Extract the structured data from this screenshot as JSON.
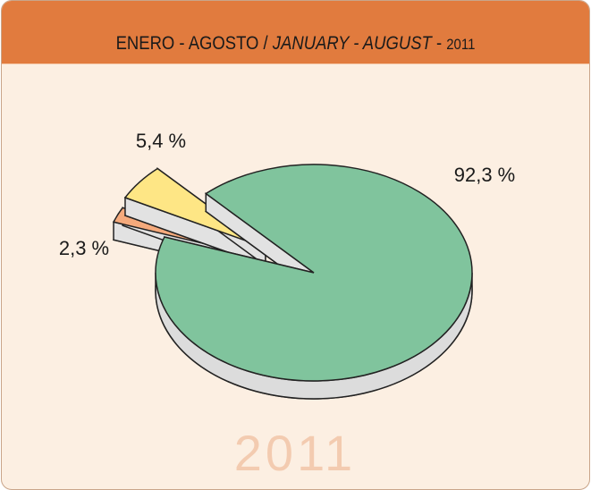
{
  "header": {
    "title": [
      "ENERO - AGOSTO / ",
      "JANUARY - AUGUST",
      " - ",
      "2011"
    ]
  },
  "chart_data": {
    "type": "pie",
    "values": [
      92.3,
      2.3,
      5.4
    ],
    "value_labels": [
      "92,3 %",
      "2,3 %",
      "5,4 %"
    ],
    "colors": [
      "#80c49d",
      "#f5aa7c",
      "#fee685"
    ],
    "watermark": "2011"
  }
}
